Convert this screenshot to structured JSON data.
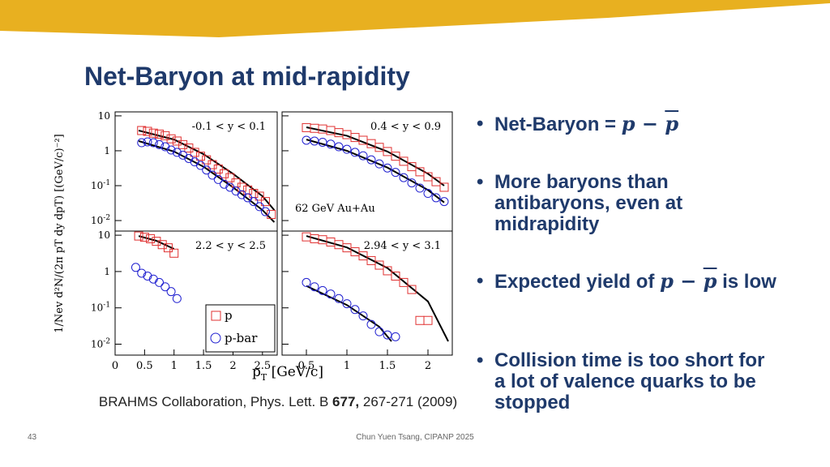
{
  "slide": {
    "title": "Net-Baryon at mid-rapidity",
    "page_number": "43",
    "footer": "Chun Yuen Tsang, CIPANP 2025",
    "accent_color": "#E8B020",
    "title_color": "#1F3A6B"
  },
  "bullets": [
    {
      "text": "Net-Baryon = ",
      "math_p": "p",
      "math_minus": " − ",
      "math_pbar": "p"
    },
    {
      "text": "More baryons than antibaryons, even at midrapidity"
    },
    {
      "text_before": "Expected yield of ",
      "math_p": "p",
      "math_minus": " − ",
      "math_pbar": "p",
      "text_after": " is low"
    },
    {
      "text": "Collision time is too short for a lot of valence quarks to be stopped"
    }
  ],
  "citation": {
    "before": "BRAHMS Collaboration, Phys. Lett. B ",
    "volume": "677,",
    "after": " 267-271 (2009)"
  },
  "chart_data": {
    "type": "scatter",
    "layout": "2x2 panels",
    "xlabel": "p_T [GeV/c]",
    "ylabel": "1/N_ev d²N/(2π p_T dy dp_T) [(GeV/c)⁻²]",
    "ylog": true,
    "ylim": [
      0.005,
      10
    ],
    "y_ticks": [
      "10",
      "1",
      "10-1",
      "10-2"
    ],
    "x_ticks_left": [
      "0",
      "0.5",
      "1",
      "1.5",
      "2",
      "2.5"
    ],
    "x_ticks_right": [
      "0.5",
      "1",
      "1.5",
      "2"
    ],
    "legend": [
      {
        "marker": "open-square",
        "label": "p",
        "color": "#E03030"
      },
      {
        "marker": "open-circle",
        "label": "p-bar",
        "color": "#2020D0"
      }
    ],
    "annotation": "62 GeV Au+Au",
    "panels": [
      {
        "rapidity": "-0.1 < y < 0.1",
        "xlim": [
          0,
          2.75
        ],
        "p": {
          "x": [
            0.45,
            0.55,
            0.65,
            0.75,
            0.85,
            0.95,
            1.05,
            1.15,
            1.25,
            1.35,
            1.45,
            1.55,
            1.65,
            1.75,
            1.85,
            1.95,
            2.05,
            2.15,
            2.25,
            2.35,
            2.45,
            2.55,
            2.65
          ],
          "y": [
            3.8,
            3.6,
            3.2,
            3.0,
            2.7,
            2.2,
            1.9,
            1.5,
            1.2,
            0.9,
            0.7,
            0.55,
            0.4,
            0.3,
            0.22,
            0.17,
            0.12,
            0.09,
            0.075,
            0.06,
            0.05,
            0.035,
            0.015
          ]
        },
        "pbar": {
          "x": [
            0.45,
            0.55,
            0.65,
            0.75,
            0.85,
            0.95,
            1.05,
            1.15,
            1.25,
            1.35,
            1.45,
            1.55,
            1.65,
            1.75,
            1.85,
            1.95,
            2.05,
            2.15,
            2.25,
            2.35,
            2.45,
            2.55
          ],
          "y": [
            1.7,
            1.8,
            1.7,
            1.5,
            1.3,
            1.05,
            0.9,
            0.75,
            0.6,
            0.48,
            0.38,
            0.28,
            0.2,
            0.15,
            0.11,
            0.09,
            0.07,
            0.055,
            0.045,
            0.035,
            0.025,
            0.018
          ]
        },
        "fit_p": {
          "x": [
            0.4,
            1.0,
            1.5,
            2.0,
            2.5,
            2.7
          ],
          "y": [
            3.8,
            2.1,
            0.8,
            0.22,
            0.05,
            0.02
          ]
        },
        "fit_pbar": {
          "x": [
            0.4,
            1.0,
            1.5,
            2.0,
            2.5,
            2.7
          ],
          "y": [
            1.9,
            0.95,
            0.35,
            0.09,
            0.02,
            0.009
          ]
        }
      },
      {
        "rapidity": "0.4 < y < 0.9",
        "xlim": [
          0.2,
          2.3
        ],
        "p": {
          "x": [
            0.5,
            0.6,
            0.7,
            0.8,
            0.9,
            1.0,
            1.1,
            1.2,
            1.3,
            1.4,
            1.5,
            1.6,
            1.7,
            1.8,
            1.9,
            2.0,
            2.1,
            2.2
          ],
          "y": [
            4.6,
            4.4,
            4.2,
            3.8,
            3.3,
            2.9,
            2.4,
            2.0,
            1.6,
            1.25,
            0.95,
            0.7,
            0.5,
            0.35,
            0.25,
            0.18,
            0.13,
            0.09
          ]
        },
        "pbar": {
          "x": [
            0.5,
            0.6,
            0.7,
            0.8,
            0.9,
            1.0,
            1.1,
            1.2,
            1.3,
            1.4,
            1.5,
            1.6,
            1.7,
            1.8,
            1.9,
            2.0,
            2.1,
            2.2
          ],
          "y": [
            2.0,
            1.9,
            1.75,
            1.55,
            1.3,
            1.1,
            0.9,
            0.72,
            0.55,
            0.42,
            0.32,
            0.24,
            0.17,
            0.12,
            0.085,
            0.06,
            0.045,
            0.035
          ]
        },
        "fit_p": {
          "x": [
            0.5,
            1.0,
            1.5,
            2.0,
            2.2
          ],
          "y": [
            4.7,
            2.7,
            0.95,
            0.22,
            0.1
          ]
        },
        "fit_pbar": {
          "x": [
            0.5,
            1.0,
            1.5,
            2.0,
            2.2
          ],
          "y": [
            2.1,
            1.0,
            0.33,
            0.075,
            0.033
          ]
        }
      },
      {
        "rapidity": "2.2 < y < 2.5",
        "xlim": [
          0,
          2.75
        ],
        "p": {
          "x": [
            0.4,
            0.5,
            0.6,
            0.7,
            0.8,
            0.9,
            1.0
          ],
          "y": [
            9.5,
            8.8,
            8.0,
            6.8,
            5.5,
            4.5,
            3.2
          ]
        },
        "pbar": {
          "x": [
            0.35,
            0.45,
            0.55,
            0.65,
            0.75,
            0.85,
            0.95,
            1.05
          ],
          "y": [
            1.3,
            0.9,
            0.75,
            0.62,
            0.5,
            0.38,
            0.28,
            0.18
          ]
        },
        "fit_p": {
          "x": [
            0.4,
            0.7,
            1.0
          ],
          "y": [
            9.5,
            7.0,
            4.2
          ]
        },
        "fit_pbar": null
      },
      {
        "rapidity": "2.94 < y < 3.1",
        "xlim": [
          0.2,
          2.3
        ],
        "p": {
          "x": [
            0.5,
            0.6,
            0.7,
            0.8,
            0.9,
            1.0,
            1.1,
            1.2,
            1.3,
            1.4,
            1.5,
            1.6,
            1.7,
            1.8,
            1.9,
            2.0
          ],
          "y": [
            9.0,
            8.0,
            7.5,
            6.5,
            5.5,
            4.5,
            3.5,
            2.7,
            2.0,
            1.5,
            1.05,
            0.75,
            0.5,
            0.32,
            0.045,
            0.045
          ]
        },
        "pbar": {
          "x": [
            0.5,
            0.6,
            0.7,
            0.8,
            0.9,
            1.0,
            1.1,
            1.2,
            1.3,
            1.4,
            1.5,
            1.6
          ],
          "y": [
            0.5,
            0.38,
            0.3,
            0.24,
            0.18,
            0.13,
            0.09,
            0.06,
            0.035,
            0.022,
            0.018,
            0.016
          ]
        },
        "fit_p": {
          "x": [
            0.5,
            1.0,
            1.5,
            2.0,
            2.25
          ],
          "y": [
            9.5,
            4.6,
            1.25,
            0.15,
            0.012
          ]
        },
        "fit_pbar": {
          "x": [
            0.5,
            1.0,
            1.4,
            1.55
          ],
          "y": [
            0.4,
            0.12,
            0.03,
            0.012
          ]
        }
      }
    ]
  }
}
